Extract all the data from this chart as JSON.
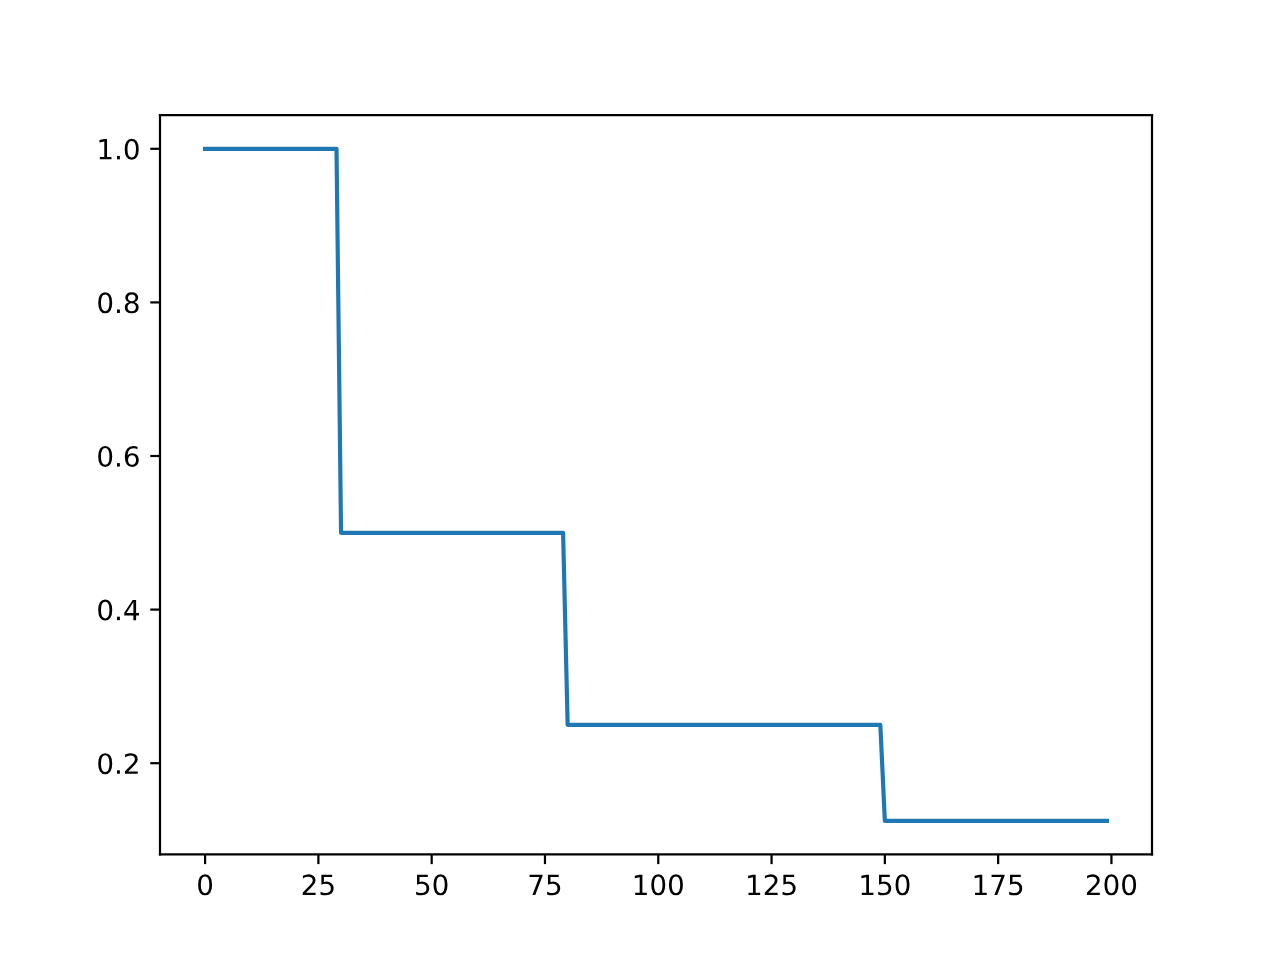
{
  "chart_data": {
    "type": "line",
    "x": [
      0,
      29,
      30,
      79,
      80,
      149,
      150,
      199
    ],
    "series": [
      {
        "color": "#1f77b4",
        "values": [
          1.0,
          1.0,
          0.5,
          0.5,
          0.25,
          0.25,
          0.125,
          0.125
        ]
      }
    ],
    "xlim": [
      -9.95,
      208.95
    ],
    "xticks": [
      0,
      25,
      50,
      75,
      100,
      125,
      150,
      175,
      200
    ],
    "ylim": [
      0.08125,
      1.04375
    ],
    "yticks": [
      0.2,
      0.4,
      0.6,
      0.8,
      {
        "value": 1,
        "label": "1.0"
      }
    ],
    "grid": false,
    "legend": false,
    "marker": "none",
    "line_style": "solid"
  }
}
